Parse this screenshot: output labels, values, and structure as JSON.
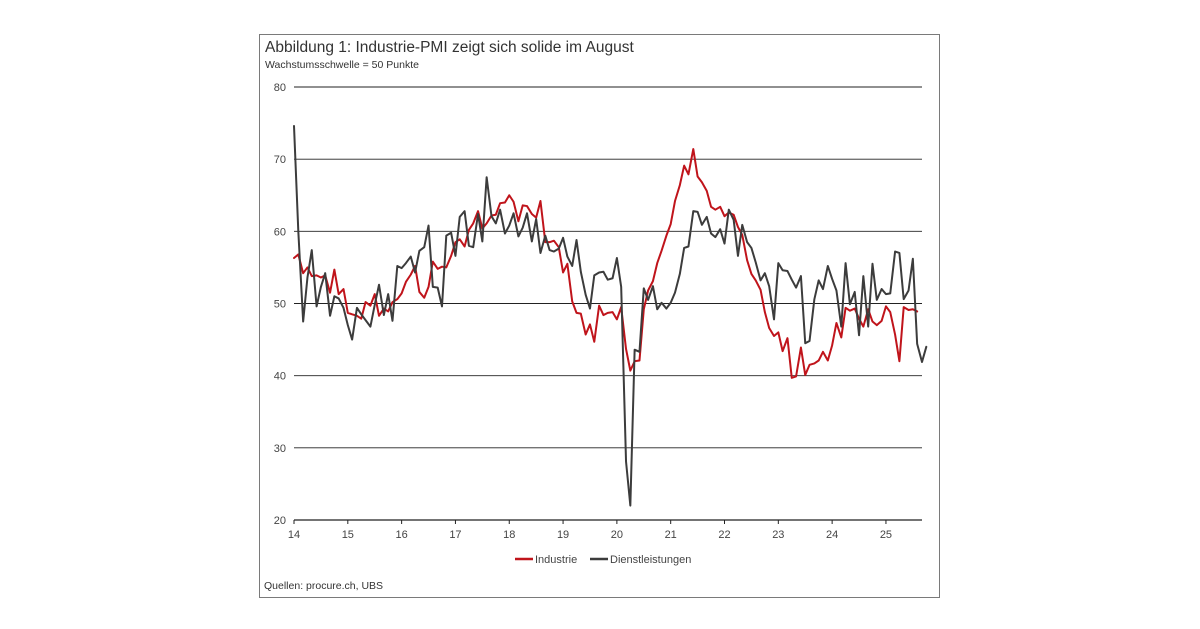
{
  "title": "Abbildung 1: Industrie-PMI zeigt sich solide im August",
  "subtitle": "Wachstumsschwelle = 50 Punkte",
  "source": "Quellen: procure.ch, UBS",
  "colors": {
    "industrie": "#c0141b",
    "dienstleistungen": "#3c3c3c",
    "grid": "#222222"
  },
  "chart_data": {
    "type": "line",
    "title": "Abbildung 1: Industrie-PMI zeigt sich solide im August",
    "subtitle": "Wachstumsschwelle = 50 Punkte",
    "xlabel": "",
    "ylabel": "",
    "ylim": [
      20,
      80
    ],
    "xlim": [
      14.0,
      25.67
    ],
    "y_ticks": [
      20,
      30,
      40,
      50,
      60,
      70,
      80
    ],
    "x_ticks": [
      "14",
      "15",
      "16",
      "17",
      "18",
      "19",
      "20",
      "21",
      "22",
      "23",
      "24",
      "25"
    ],
    "grid": "horizontal",
    "legend_position": "bottom-center",
    "series": [
      {
        "name": "Industrie",
        "color": "#c0141b",
        "points": [
          [
            14.0,
            56.3
          ],
          [
            14.08,
            56.8
          ],
          [
            14.17,
            54.2
          ],
          [
            14.25,
            55.0
          ],
          [
            14.33,
            53.8
          ],
          [
            14.42,
            53.9
          ],
          [
            14.5,
            53.6
          ],
          [
            14.58,
            53.9
          ],
          [
            14.67,
            51.5
          ],
          [
            14.75,
            54.7
          ],
          [
            14.83,
            51.3
          ],
          [
            14.92,
            52.0
          ],
          [
            15.0,
            48.7
          ],
          [
            15.08,
            48.5
          ],
          [
            15.17,
            48.3
          ],
          [
            15.25,
            47.9
          ],
          [
            15.33,
            50.2
          ],
          [
            15.42,
            49.7
          ],
          [
            15.5,
            51.3
          ],
          [
            15.58,
            48.3
          ],
          [
            15.67,
            49.3
          ],
          [
            15.75,
            48.9
          ],
          [
            15.83,
            50.2
          ],
          [
            15.92,
            50.6
          ],
          [
            16.0,
            51.4
          ],
          [
            16.08,
            53.0
          ],
          [
            16.17,
            54.0
          ],
          [
            16.25,
            55.2
          ],
          [
            16.33,
            51.6
          ],
          [
            16.42,
            50.8
          ],
          [
            16.5,
            52.3
          ],
          [
            16.58,
            55.8
          ],
          [
            16.67,
            54.8
          ],
          [
            16.75,
            55.1
          ],
          [
            16.83,
            55.0
          ],
          [
            16.92,
            56.6
          ],
          [
            17.0,
            58.5
          ],
          [
            17.08,
            58.9
          ],
          [
            17.17,
            57.9
          ],
          [
            17.25,
            60.2
          ],
          [
            17.33,
            61.1
          ],
          [
            17.42,
            62.8
          ],
          [
            17.5,
            60.4
          ],
          [
            17.58,
            61.1
          ],
          [
            17.67,
            62.2
          ],
          [
            17.75,
            62.3
          ],
          [
            17.83,
            63.9
          ],
          [
            17.92,
            64.0
          ],
          [
            18.0,
            65.0
          ],
          [
            18.08,
            64.1
          ],
          [
            18.17,
            61.4
          ],
          [
            18.25,
            63.6
          ],
          [
            18.33,
            63.5
          ],
          [
            18.42,
            62.4
          ],
          [
            18.5,
            61.9
          ],
          [
            18.58,
            64.2
          ],
          [
            18.67,
            58.5
          ],
          [
            18.75,
            58.5
          ],
          [
            18.83,
            58.7
          ],
          [
            18.92,
            57.8
          ],
          [
            19.0,
            54.3
          ],
          [
            19.08,
            55.5
          ],
          [
            19.17,
            50.3
          ],
          [
            19.25,
            48.7
          ],
          [
            19.33,
            48.6
          ],
          [
            19.42,
            45.7
          ],
          [
            19.5,
            47.1
          ],
          [
            19.58,
            44.7
          ],
          [
            19.67,
            49.7
          ],
          [
            19.75,
            48.4
          ],
          [
            19.83,
            48.7
          ],
          [
            19.92,
            48.8
          ],
          [
            20.0,
            47.8
          ],
          [
            20.08,
            49.5
          ],
          [
            20.17,
            43.7
          ],
          [
            20.25,
            40.7
          ],
          [
            20.33,
            42.0
          ],
          [
            20.42,
            42.1
          ],
          [
            20.5,
            49.2
          ],
          [
            20.58,
            51.8
          ],
          [
            20.67,
            53.1
          ],
          [
            20.75,
            55.6
          ],
          [
            20.83,
            57.3
          ],
          [
            20.92,
            59.4
          ],
          [
            21.0,
            61.0
          ],
          [
            21.08,
            64.2
          ],
          [
            21.17,
            66.4
          ],
          [
            21.25,
            69.1
          ],
          [
            21.33,
            67.9
          ],
          [
            21.42,
            71.4
          ],
          [
            21.5,
            67.6
          ],
          [
            21.58,
            66.8
          ],
          [
            21.67,
            65.6
          ],
          [
            21.75,
            63.4
          ],
          [
            21.83,
            63.0
          ],
          [
            21.92,
            63.4
          ],
          [
            22.0,
            62.1
          ],
          [
            22.08,
            62.6
          ],
          [
            22.17,
            62.3
          ],
          [
            22.25,
            60.6
          ],
          [
            22.33,
            59.5
          ],
          [
            22.42,
            56.0
          ],
          [
            22.5,
            54.1
          ],
          [
            22.58,
            53.2
          ],
          [
            22.67,
            51.9
          ],
          [
            22.75,
            48.8
          ],
          [
            22.83,
            46.6
          ],
          [
            22.92,
            45.5
          ],
          [
            23.0,
            46.0
          ],
          [
            23.08,
            43.4
          ],
          [
            23.17,
            45.2
          ],
          [
            23.25,
            39.7
          ],
          [
            23.33,
            39.9
          ],
          [
            23.42,
            43.9
          ],
          [
            23.5,
            40.1
          ],
          [
            23.58,
            41.5
          ],
          [
            23.67,
            41.7
          ],
          [
            23.75,
            42.1
          ],
          [
            23.83,
            43.3
          ],
          [
            23.92,
            42.1
          ],
          [
            24.0,
            44.2
          ],
          [
            24.08,
            47.3
          ],
          [
            24.17,
            45.3
          ],
          [
            24.25,
            49.4
          ],
          [
            24.33,
            49.0
          ],
          [
            24.42,
            49.3
          ],
          [
            24.5,
            47.9
          ],
          [
            24.58,
            46.8
          ],
          [
            24.67,
            49.2
          ],
          [
            24.75,
            47.5
          ],
          [
            24.83,
            47.0
          ],
          [
            24.92,
            47.6
          ],
          [
            25.0,
            49.6
          ],
          [
            25.08,
            48.8
          ],
          [
            25.17,
            45.7
          ],
          [
            25.25,
            42.0
          ],
          [
            25.33,
            49.5
          ],
          [
            25.42,
            49.1
          ],
          [
            25.5,
            49.2
          ],
          [
            25.58,
            48.9
          ]
        ]
      },
      {
        "name": "Dienstleistungen",
        "color": "#3c3c3c",
        "points": [
          [
            14.0,
            74.6
          ],
          [
            14.08,
            60.0
          ],
          [
            14.17,
            47.5
          ],
          [
            14.25,
            53.6
          ],
          [
            14.33,
            57.4
          ],
          [
            14.42,
            49.6
          ],
          [
            14.5,
            52.3
          ],
          [
            14.58,
            54.2
          ],
          [
            14.67,
            48.3
          ],
          [
            14.75,
            51.0
          ],
          [
            14.83,
            50.7
          ],
          [
            14.92,
            49.4
          ],
          [
            15.0,
            47.0
          ],
          [
            15.08,
            45.0
          ],
          [
            15.17,
            49.4
          ],
          [
            15.25,
            48.5
          ],
          [
            15.33,
            47.7
          ],
          [
            15.42,
            46.8
          ],
          [
            15.5,
            49.8
          ],
          [
            15.58,
            52.6
          ],
          [
            15.67,
            48.4
          ],
          [
            15.75,
            51.3
          ],
          [
            15.83,
            47.6
          ],
          [
            15.92,
            55.2
          ],
          [
            16.0,
            54.9
          ],
          [
            16.08,
            55.6
          ],
          [
            16.17,
            56.5
          ],
          [
            16.25,
            54.3
          ],
          [
            16.33,
            57.3
          ],
          [
            16.42,
            57.8
          ],
          [
            16.5,
            60.8
          ],
          [
            16.58,
            52.3
          ],
          [
            16.67,
            52.2
          ],
          [
            16.75,
            49.6
          ],
          [
            16.83,
            59.4
          ],
          [
            16.92,
            59.8
          ],
          [
            17.0,
            56.6
          ],
          [
            17.08,
            62.0
          ],
          [
            17.17,
            62.8
          ],
          [
            17.25,
            58.0
          ],
          [
            17.33,
            57.8
          ],
          [
            17.42,
            62.4
          ],
          [
            17.5,
            58.6
          ],
          [
            17.58,
            67.5
          ],
          [
            17.67,
            62.1
          ],
          [
            17.75,
            61.1
          ],
          [
            17.83,
            63.0
          ],
          [
            17.92,
            59.7
          ],
          [
            18.0,
            60.8
          ],
          [
            18.08,
            62.5
          ],
          [
            18.17,
            59.3
          ],
          [
            18.25,
            60.5
          ],
          [
            18.33,
            62.5
          ],
          [
            18.42,
            58.6
          ],
          [
            18.5,
            61.7
          ],
          [
            18.58,
            57.0
          ],
          [
            18.67,
            59.4
          ],
          [
            18.75,
            57.4
          ],
          [
            18.83,
            57.2
          ],
          [
            18.92,
            57.6
          ],
          [
            19.0,
            59.1
          ],
          [
            19.08,
            56.5
          ],
          [
            19.17,
            55.2
          ],
          [
            19.25,
            58.8
          ],
          [
            19.33,
            54.4
          ],
          [
            19.42,
            51.2
          ],
          [
            19.5,
            49.3
          ],
          [
            19.58,
            53.9
          ],
          [
            19.67,
            54.3
          ],
          [
            19.75,
            54.4
          ],
          [
            19.83,
            53.3
          ],
          [
            19.92,
            53.5
          ],
          [
            20.0,
            56.3
          ],
          [
            20.08,
            52.3
          ],
          [
            20.17,
            28.1
          ],
          [
            20.25,
            22.0
          ],
          [
            20.33,
            43.6
          ],
          [
            20.42,
            43.3
          ],
          [
            20.5,
            52.1
          ],
          [
            20.58,
            50.5
          ],
          [
            20.67,
            52.4
          ],
          [
            20.75,
            49.2
          ],
          [
            20.83,
            50.1
          ],
          [
            20.92,
            49.3
          ],
          [
            21.0,
            50.1
          ],
          [
            21.08,
            51.5
          ],
          [
            21.17,
            54.1
          ],
          [
            21.25,
            57.7
          ],
          [
            21.33,
            57.9
          ],
          [
            21.42,
            62.8
          ],
          [
            21.5,
            62.7
          ],
          [
            21.58,
            60.9
          ],
          [
            21.67,
            62.0
          ],
          [
            21.75,
            59.7
          ],
          [
            21.83,
            59.2
          ],
          [
            21.92,
            60.3
          ],
          [
            22.0,
            58.3
          ],
          [
            22.08,
            63.0
          ],
          [
            22.17,
            61.6
          ],
          [
            22.25,
            56.6
          ],
          [
            22.33,
            60.9
          ],
          [
            22.42,
            58.5
          ],
          [
            22.5,
            57.7
          ],
          [
            22.58,
            55.7
          ],
          [
            22.67,
            53.2
          ],
          [
            22.75,
            54.2
          ],
          [
            22.83,
            52.4
          ],
          [
            22.92,
            47.8
          ],
          [
            23.0,
            55.6
          ],
          [
            23.08,
            54.6
          ],
          [
            23.17,
            54.5
          ],
          [
            23.25,
            53.3
          ],
          [
            23.33,
            52.2
          ],
          [
            23.42,
            53.8
          ],
          [
            23.5,
            44.5
          ],
          [
            23.58,
            44.8
          ],
          [
            23.67,
            50.6
          ],
          [
            23.75,
            53.2
          ],
          [
            23.83,
            52.0
          ],
          [
            23.92,
            55.2
          ],
          [
            24.0,
            53.4
          ],
          [
            24.08,
            51.8
          ],
          [
            24.17,
            46.8
          ],
          [
            24.25,
            55.6
          ],
          [
            24.33,
            49.9
          ],
          [
            24.42,
            51.6
          ],
          [
            24.5,
            45.6
          ],
          [
            24.58,
            53.8
          ],
          [
            24.67,
            46.8
          ],
          [
            24.75,
            55.5
          ],
          [
            24.83,
            50.5
          ],
          [
            24.92,
            52.0
          ],
          [
            25.0,
            51.3
          ],
          [
            25.08,
            51.4
          ],
          [
            25.17,
            57.2
          ],
          [
            25.25,
            57.0
          ],
          [
            25.33,
            50.6
          ],
          [
            25.42,
            51.8
          ],
          [
            25.5,
            56.2
          ],
          [
            25.58,
            44.4
          ],
          [
            25.67,
            41.9
          ],
          [
            25.75,
            44.0
          ]
        ]
      }
    ]
  }
}
